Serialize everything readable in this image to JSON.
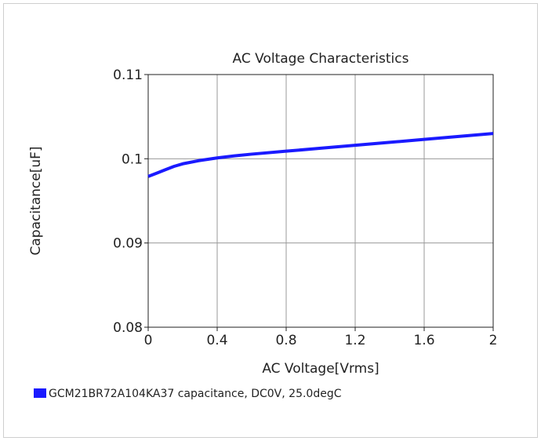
{
  "chart_data": {
    "type": "line",
    "title": "AC Voltage Characteristics",
    "xlabel": "AC Voltage[Vrms]",
    "ylabel": "Capacitance[uF]",
    "xlim": [
      0,
      2
    ],
    "ylim": [
      0.08,
      0.11
    ],
    "x_ticks": [
      0,
      0.4,
      0.8,
      1.2,
      1.6,
      2
    ],
    "x_tick_labels": [
      "0",
      "0.4",
      "0.8",
      "1.2",
      "1.6",
      "2"
    ],
    "y_ticks": [
      0.08,
      0.09,
      0.1,
      0.11
    ],
    "y_tick_labels": [
      "0.08",
      "0.09",
      "0.1",
      "0.11"
    ],
    "grid": true,
    "legend_position": "bottom-left",
    "series": [
      {
        "name": "GCM21BR72A104KA37 capacitance, DC0V, 25.0degC",
        "color": "#1a1aff",
        "x": [
          0,
          0.05,
          0.1,
          0.15,
          0.2,
          0.3,
          0.4,
          0.5,
          0.6,
          0.8,
          1.0,
          1.2,
          1.4,
          1.6,
          1.8,
          2.0
        ],
        "y": [
          0.0979,
          0.0983,
          0.0987,
          0.0991,
          0.0994,
          0.0998,
          0.1001,
          0.10035,
          0.10055,
          0.1009,
          0.10125,
          0.1016,
          0.10195,
          0.1023,
          0.10265,
          0.103
        ]
      }
    ]
  }
}
